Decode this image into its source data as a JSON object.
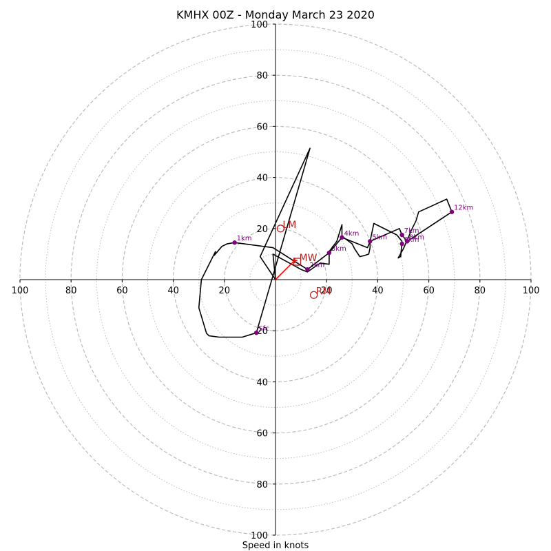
{
  "chart_data": {
    "type": "scatter",
    "subtype": "hodograph",
    "title": "KMHX 00Z - Monday March 23 2020",
    "xlabel": "Speed in knots",
    "ylabel": "",
    "xlim": [
      -100,
      100
    ],
    "ylim": [
      -100,
      100
    ],
    "rings_major": [
      20,
      40,
      60,
      80,
      100
    ],
    "rings_minor": [
      10,
      30,
      50,
      70,
      90
    ],
    "x_ticks": [
      {
        "value": -100,
        "label": "100"
      },
      {
        "value": -80,
        "label": "80"
      },
      {
        "value": -60,
        "label": "60"
      },
      {
        "value": -40,
        "label": "40"
      },
      {
        "value": -20,
        "label": "20"
      },
      {
        "value": 20,
        "label": "20"
      },
      {
        "value": 40,
        "label": "40"
      },
      {
        "value": 60,
        "label": "60"
      },
      {
        "value": 80,
        "label": "80"
      },
      {
        "value": 100,
        "label": "100"
      }
    ],
    "y_ticks": [
      {
        "value": 100,
        "label": "100"
      },
      {
        "value": 80,
        "label": "80"
      },
      {
        "value": 60,
        "label": "60"
      },
      {
        "value": 40,
        "label": "40"
      },
      {
        "value": 20,
        "label": "20"
      },
      {
        "value": -20,
        "label": "20"
      },
      {
        "value": -40,
        "label": "40"
      },
      {
        "value": -60,
        "label": "60"
      },
      {
        "value": -80,
        "label": "80"
      },
      {
        "value": -100,
        "label": "100"
      }
    ],
    "grid": true,
    "series": [
      {
        "color": "#000000",
        "points": [
          [
            -7.5,
            -20.8
          ],
          [
            13.5,
            51.4
          ],
          [
            -6,
            9
          ],
          [
            0,
            0
          ],
          [
            -1,
            10
          ],
          [
            10,
            4
          ],
          [
            12.5,
            3
          ],
          [
            17.5,
            6.5
          ],
          [
            21,
            6
          ],
          [
            21,
            11
          ],
          [
            24,
            15
          ],
          [
            26,
            21.5
          ],
          [
            26,
            17
          ],
          [
            30,
            14
          ],
          [
            31,
            12
          ],
          [
            33,
            9
          ],
          [
            35,
            9.5
          ],
          [
            36.5,
            10
          ],
          [
            37,
            12.5
          ],
          [
            37,
            15
          ],
          [
            38.5,
            22
          ],
          [
            47.5,
            17.5
          ],
          [
            49.5,
            15
          ],
          [
            49,
            9
          ],
          [
            48,
            8.5
          ],
          [
            50,
            12
          ],
          [
            52,
            16.5
          ],
          [
            53,
            19
          ],
          [
            55,
            23
          ],
          [
            56,
            26.5
          ],
          [
            67,
            31.5
          ],
          [
            69,
            26.5
          ],
          [
            51.5,
            15
          ],
          [
            49.5,
            17.5
          ],
          [
            48.5,
            20
          ],
          [
            37,
            15
          ],
          [
            36,
            12.5
          ],
          [
            26,
            16.5
          ],
          [
            21,
            10.5
          ],
          [
            12.5,
            4
          ],
          [
            -1,
            12.5
          ],
          [
            -16,
            14.5
          ],
          [
            -19,
            14
          ],
          [
            -21,
            13
          ],
          [
            -24,
            9.5
          ],
          [
            -23.5,
            11
          ],
          [
            -29,
            0
          ],
          [
            -30,
            -11
          ],
          [
            -27,
            -21
          ],
          [
            -26,
            -22
          ],
          [
            -22,
            -22.5
          ],
          [
            -13,
            -22.5
          ],
          [
            -7.5,
            -20.8
          ]
        ]
      }
    ],
    "height_markers": [
      {
        "label": "Sfc",
        "x": -7.5,
        "y": -20.8
      },
      {
        "label": "1km",
        "x": -16,
        "y": 14.5
      },
      {
        "label": "2km",
        "x": 12.5,
        "y": 4
      },
      {
        "label": "3km",
        "x": 21,
        "y": 10.5
      },
      {
        "label": "4km",
        "x": 26,
        "y": 16.5
      },
      {
        "label": "5km",
        "x": 37,
        "y": 15
      },
      {
        "label": "6km",
        "x": 49.5,
        "y": 14
      },
      {
        "label": "7km",
        "x": 49.5,
        "y": 17.5
      },
      {
        "label": "8km",
        "x": 51.5,
        "y": 15
      },
      {
        "label": "12km",
        "x": 69,
        "y": 26.5
      }
    ],
    "motions": [
      {
        "label": "LM",
        "x": 2,
        "y": 20,
        "marker": "circle"
      },
      {
        "label": "RM",
        "x": 15,
        "y": -6,
        "marker": "circle"
      },
      {
        "label": "MW",
        "x": 8.5,
        "y": 7,
        "marker": "square"
      }
    ],
    "motion_vector": {
      "x": 7.5,
      "y": 7.5
    },
    "colors": {
      "hodograph": "#000000",
      "height_markers": "#800080",
      "motions": "#b22222",
      "motion_vector": "#ff0000",
      "grid_rings": "#bbbbbb",
      "axes": "#000000"
    }
  }
}
